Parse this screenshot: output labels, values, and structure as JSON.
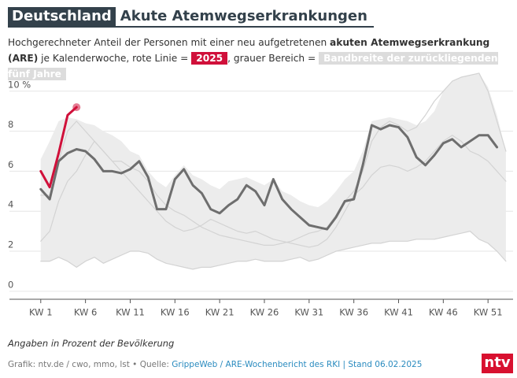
{
  "chart_data": {
    "type": "line",
    "region": "Deutschland",
    "title": "Akute Atemwegserkrankungen",
    "subtitle": [
      "Hochgerechneter Anteil der Personen mit einer neu aufgetretenen",
      "akuten Atemwegserkrankung (ARE)",
      "je Kalenderwoche, rote Linie =",
      ", grauer Bereich ="
    ],
    "note": "Angaben in Prozent der Bevölkerung",
    "credit": "Grafik: ntv.de / cwo, mmo, lst • Quelle:",
    "source": "GrippeWeb / ARE-Wochenbericht des RKI | Stand 06.02.2025",
    "logo": "ntv",
    "x": [
      1,
      2,
      3,
      4,
      5,
      6,
      7,
      8,
      9,
      10,
      11,
      12,
      13,
      14,
      15,
      16,
      17,
      18,
      19,
      20,
      21,
      22,
      23,
      24,
      25,
      26,
      27,
      28,
      29,
      30,
      31,
      32,
      33,
      34,
      35,
      36,
      37,
      38,
      39,
      40,
      41,
      42,
      43,
      44,
      45,
      46,
      47,
      48,
      49,
      50,
      51,
      52,
      53
    ],
    "xlim": [
      -2.5,
      53.8
    ],
    "xticks": [
      {
        "value": 1,
        "label": "KW 1"
      },
      {
        "value": 6,
        "label": "KW 6"
      },
      {
        "value": 11,
        "label": "KW 11"
      },
      {
        "value": 16,
        "label": "KW 16"
      },
      {
        "value": 21,
        "label": "KW 21"
      },
      {
        "value": 26,
        "label": "KW 26"
      },
      {
        "value": 31,
        "label": "KW 31"
      },
      {
        "value": 36,
        "label": "KW 36"
      },
      {
        "value": 41,
        "label": "KW 41"
      },
      {
        "value": 46,
        "label": "KW 46"
      },
      {
        "value": 51,
        "label": "KW 51"
      }
    ],
    "ylim": [
      -0.4,
      11
    ],
    "yticks": [
      0,
      2,
      4,
      6,
      8,
      {
        "value": 10,
        "label": "10 %"
      }
    ],
    "grid": true,
    "band": {
      "name": "Bandbreite der zurückliegenden fünf Jahre",
      "color": "#ececec",
      "upper": [
        6.6,
        7.5,
        8.5,
        8.7,
        8.6,
        8.4,
        8.3,
        8.0,
        7.8,
        7.5,
        7.0,
        6.8,
        6.0,
        5.5,
        5.2,
        5.8,
        6.3,
        5.8,
        5.6,
        5.3,
        5.1,
        5.5,
        5.6,
        5.7,
        5.5,
        5.3,
        5.6,
        5.0,
        4.8,
        4.5,
        4.3,
        4.2,
        4.5,
        5.0,
        5.6,
        6.0,
        7.0,
        8.5,
        8.6,
        8.7,
        8.6,
        8.5,
        8.3,
        8.5,
        9.0,
        10.0,
        10.5,
        10.7,
        10.8,
        10.9,
        10.2,
        8.8,
        7.0
      ],
      "lower": [
        1.5,
        1.5,
        1.7,
        1.5,
        1.2,
        1.5,
        1.7,
        1.4,
        1.6,
        1.8,
        2.0,
        2.0,
        1.9,
        1.6,
        1.4,
        1.3,
        1.2,
        1.1,
        1.2,
        1.2,
        1.3,
        1.4,
        1.5,
        1.5,
        1.6,
        1.5,
        1.5,
        1.5,
        1.6,
        1.7,
        1.5,
        1.6,
        1.8,
        2.0,
        2.1,
        2.2,
        2.3,
        2.4,
        2.4,
        2.5,
        2.5,
        2.5,
        2.6,
        2.6,
        2.6,
        2.7,
        2.8,
        2.9,
        3.0,
        2.6,
        2.4,
        2.0,
        1.5
      ]
    },
    "series": [
      {
        "color": "#d3d3d3",
        "values": [
          4.8,
          4.8,
          6.5,
          8.0,
          8.5,
          8.0,
          7.5,
          7.0,
          6.5,
          6.5,
          6.2,
          6.0,
          5.5,
          4.8,
          4.3,
          4.0,
          3.8,
          3.5,
          3.2,
          3.0,
          2.8,
          2.7,
          2.6,
          2.5,
          2.4,
          2.3,
          2.3,
          2.4,
          2.5,
          2.7,
          2.9,
          3.0,
          3.2,
          3.8,
          4.5,
          5.0,
          6.0,
          7.5,
          8.2,
          8.5,
          8.3,
          8.0,
          8.2,
          8.8,
          9.5,
          10.0,
          10.5,
          10.7,
          10.8,
          10.9,
          10.0,
          8.5,
          7.0
        ]
      },
      {
        "color": "#d3d3d3",
        "values": [
          2.5,
          3.0,
          4.5,
          5.5,
          6.0,
          6.8,
          7.5,
          7.0,
          6.5,
          6.0,
          5.5,
          5.0,
          4.5,
          4.0,
          3.5,
          3.2,
          3.0,
          3.1,
          3.3,
          3.6,
          3.4,
          3.2,
          3.0,
          2.9,
          3.0,
          2.8,
          2.6,
          2.5,
          2.4,
          2.3,
          2.2,
          2.3,
          2.6,
          3.2,
          4.0,
          4.8,
          5.2,
          5.8,
          6.2,
          6.3,
          6.2,
          6.0,
          6.2,
          6.5,
          7.0,
          7.5,
          7.8,
          7.5,
          7.0,
          6.8,
          6.5,
          6.0,
          5.5
        ]
      },
      {
        "color": "#d3d3d3",
        "values": [
          1.5,
          1.5,
          1.7,
          1.5,
          1.2,
          1.5,
          1.7,
          1.4,
          1.6,
          1.8,
          2.0,
          2.0,
          1.9,
          1.6,
          1.4,
          1.3,
          1.2,
          1.1,
          1.2,
          1.2,
          1.3,
          1.4,
          1.5,
          1.5,
          1.6,
          1.5,
          1.5,
          1.5,
          1.6,
          1.7,
          1.5,
          1.6,
          1.8,
          2.0,
          2.1,
          2.2,
          2.3,
          2.4,
          2.4,
          2.5,
          2.5,
          2.5,
          2.6,
          2.6,
          2.6,
          2.7,
          2.8,
          2.9,
          3.0,
          2.6,
          2.4,
          2.0,
          1.5
        ]
      },
      {
        "color": "#6e6e6e",
        "values": [
          5.1,
          4.6,
          6.5,
          6.9,
          7.1,
          7.0,
          6.6,
          6.0,
          6.0,
          5.9,
          6.1,
          6.5,
          5.7,
          4.1,
          4.1,
          5.6,
          6.1,
          5.3,
          4.9,
          4.1,
          3.9,
          4.3,
          4.6,
          5.3,
          5.0,
          4.3,
          5.6,
          4.6,
          4.1,
          3.7,
          3.3,
          3.2,
          3.1,
          3.7,
          4.5,
          4.6,
          6.3,
          8.3,
          8.1,
          8.3,
          8.2,
          7.7,
          6.7,
          6.3,
          6.8,
          7.4,
          7.6,
          7.2,
          7.5,
          7.8,
          7.8,
          7.2,
          null
        ]
      },
      {
        "name": "2025",
        "color": "#d0103a",
        "values": [
          6.0,
          5.2,
          6.9,
          8.8,
          9.2,
          null,
          null,
          null,
          null,
          null,
          null,
          null,
          null,
          null,
          null,
          null,
          null,
          null,
          null,
          null,
          null,
          null,
          null,
          null,
          null,
          null,
          null,
          null,
          null,
          null,
          null,
          null,
          null,
          null,
          null,
          null,
          null,
          null,
          null,
          null,
          null,
          null,
          null,
          null,
          null,
          null,
          null,
          null,
          null,
          null,
          null,
          null,
          null
        ]
      }
    ]
  }
}
